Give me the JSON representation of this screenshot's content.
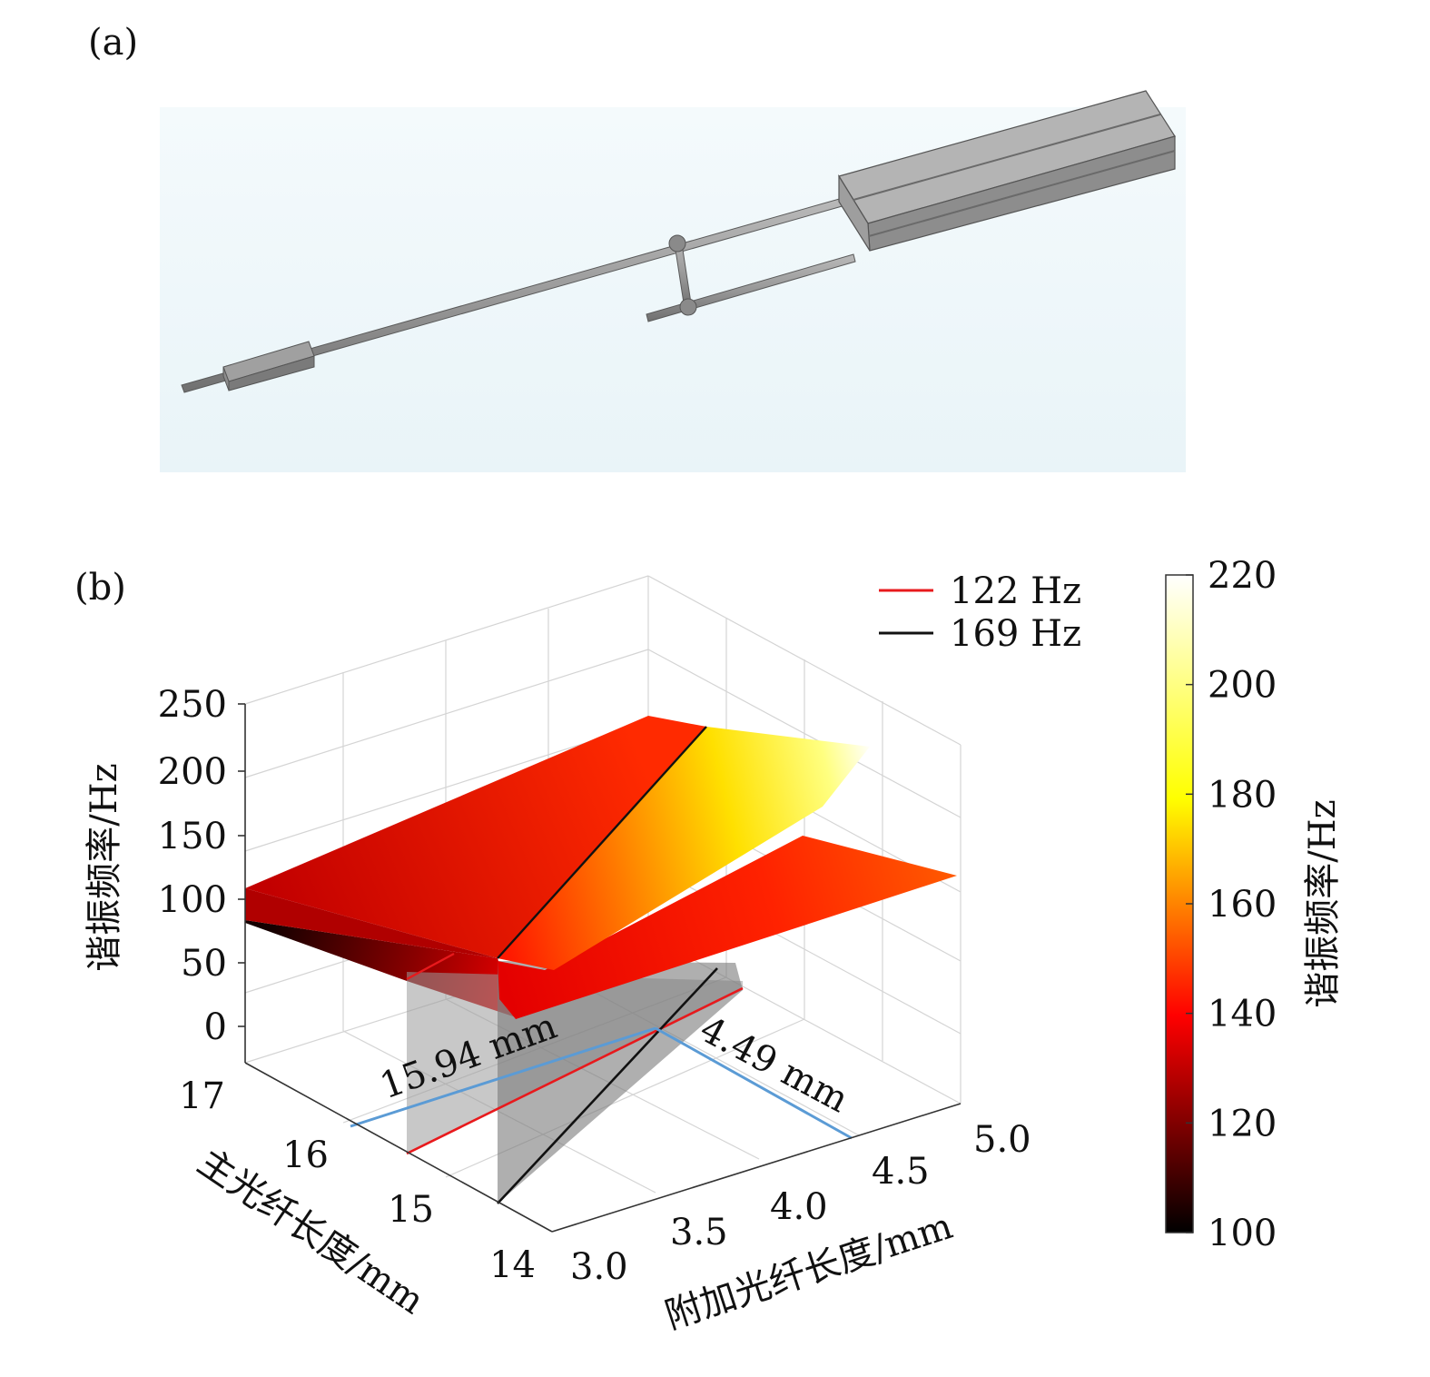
{
  "panel_a": {
    "label": "(a)",
    "icon": "fiber-vibration-sensor-3d-model"
  },
  "panel_b": {
    "label": "(b)",
    "annotations": {
      "main_length": "15.94 mm",
      "additional_length": "4.49 mm"
    }
  },
  "chart_data": {
    "type": "surface3d",
    "title": "",
    "zlabel": "谐振频率/Hz",
    "ylabel": "主光纤长度/mm",
    "xlabel": "附加光纤长度/mm",
    "z_ticks": [
      "250",
      "200",
      "150",
      "100",
      "50",
      "0"
    ],
    "y_ticks": [
      "17",
      "16",
      "15",
      "14"
    ],
    "x_ticks": [
      "3.0",
      "3.5",
      "4.0",
      "4.5",
      "5.0"
    ],
    "xlim": [
      3.0,
      5.0
    ],
    "ylim": [
      14,
      17
    ],
    "zlim": [
      0,
      250
    ],
    "legend": {
      "placement": "top-right",
      "entries": [
        {
          "label": "122 Hz",
          "color": "#e8191c"
        },
        {
          "label": "169 Hz",
          "color": "#111111"
        }
      ]
    },
    "colorbar": {
      "label": "谐振频率/Hz",
      "ticks": [
        "220",
        "200",
        "180",
        "160",
        "140",
        "120",
        "100"
      ],
      "range": [
        100,
        220
      ],
      "colormap": "hot"
    },
    "contours": [
      {
        "level": 122,
        "color": "#e8191c"
      },
      {
        "level": 169,
        "color": "#111111"
      }
    ],
    "intersection": {
      "additional_fiber_mm": 4.49,
      "main_fiber_mm": 15.94
    }
  }
}
